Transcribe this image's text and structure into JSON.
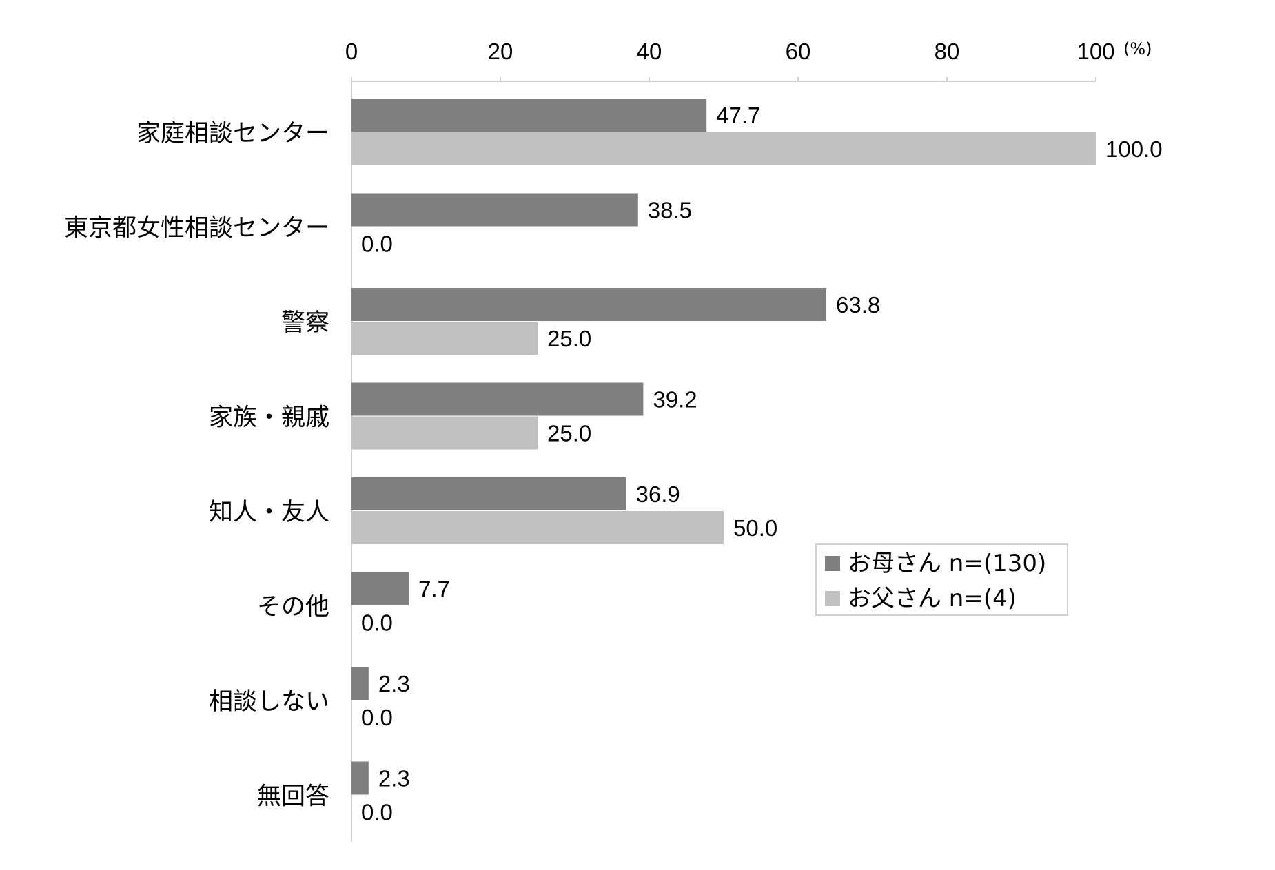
{
  "chart_data": {
    "type": "bar",
    "orientation": "horizontal",
    "unit_label": "(%)",
    "xlim": [
      0,
      100
    ],
    "x_ticks": [
      "0",
      "20",
      "40",
      "60",
      "80",
      "100"
    ],
    "categories": [
      "家庭相談センター",
      "東京都女性相談センター",
      "警察",
      "家族・親戚",
      "知人・友人",
      "その他",
      "相談しない",
      "無回答"
    ],
    "series": [
      {
        "name": "お母さん n=(130)",
        "color": "#7f7f7f",
        "values": [
          47.7,
          38.5,
          63.8,
          39.2,
          36.9,
          7.7,
          2.3,
          2.3
        ],
        "labels": [
          "47.7",
          "38.5",
          "63.8",
          "39.2",
          "36.9",
          "7.7",
          "2.3",
          "2.3"
        ]
      },
      {
        "name": "お父さん n=(4)",
        "color": "#c0c0c0",
        "values": [
          100.0,
          0.0,
          25.0,
          25.0,
          50.0,
          0.0,
          0.0,
          0.0
        ],
        "labels": [
          "100.0",
          "0.0",
          "25.0",
          "25.0",
          "50.0",
          "0.0",
          "0.0",
          "0.0"
        ]
      }
    ],
    "legend": {
      "position": "right"
    },
    "grid": false
  }
}
